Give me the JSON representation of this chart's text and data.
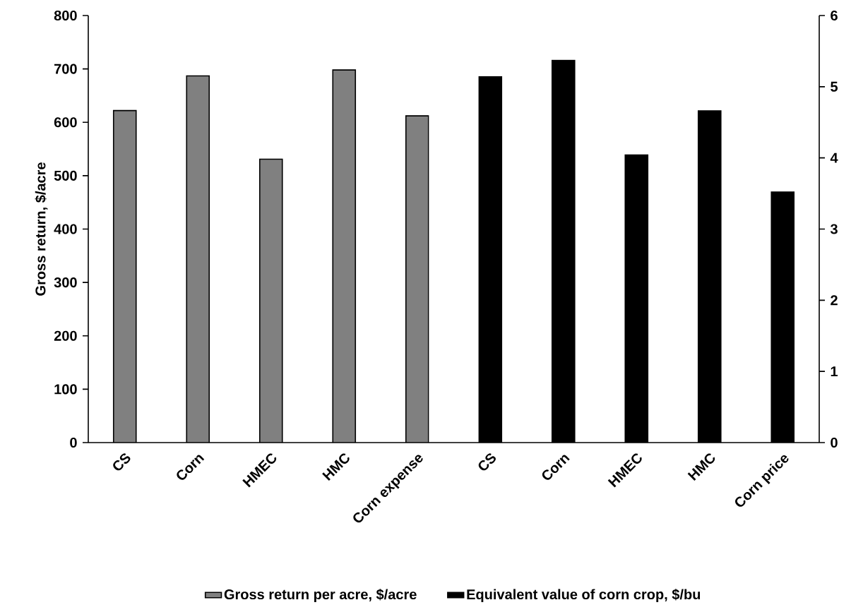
{
  "chart_data": {
    "type": "bar",
    "ylabel": "Gross return, $/acre",
    "categories": [
      "CS",
      "Corn",
      "HMEC",
      "HMC",
      "Corn expense",
      "CS",
      "Corn",
      "HMEC",
      "HMC",
      "Corn price"
    ],
    "series": [
      {
        "name": "Gross return per acre, $/acre",
        "color": "#808080",
        "values": [
          622,
          687,
          531,
          698,
          612,
          null,
          null,
          null,
          null,
          null
        ]
      },
      {
        "name": "Equivalent value of corn crop, $/bu",
        "color": "#000000",
        "axis": "y2",
        "values": [
          null,
          null,
          null,
          null,
          null,
          5.14,
          5.37,
          4.04,
          4.66,
          3.52
        ]
      }
    ],
    "ylim": [
      0,
      800
    ],
    "yticks": [
      0,
      100,
      200,
      300,
      400,
      500,
      600,
      700,
      800
    ],
    "y2lim": [
      0,
      6
    ],
    "y2ticks": [
      0,
      1,
      2,
      3,
      4,
      5,
      6
    ],
    "legend": "bottom"
  }
}
